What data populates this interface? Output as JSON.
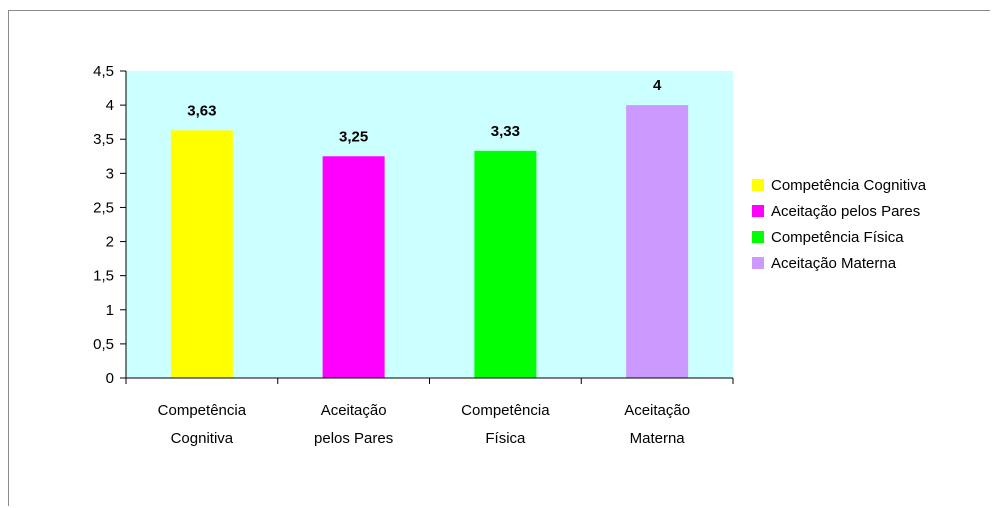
{
  "chart_data": {
    "type": "bar",
    "categories": [
      [
        "Competência",
        "Cognitiva"
      ],
      [
        "Aceitação",
        "pelos Pares"
      ],
      [
        "Competência",
        "Física"
      ],
      [
        "Aceitação",
        "Materna"
      ]
    ],
    "values": [
      3.63,
      3.25,
      3.33,
      4
    ],
    "data_labels": [
      "3,63",
      "3,25",
      "3,33",
      "4"
    ],
    "colors": [
      "#FFFF00",
      "#FF00FF",
      "#00FF00",
      "#CC99FF"
    ],
    "plot_background": "#CCFFFF",
    "ylim": [
      0,
      4.5
    ],
    "yticks": [
      0,
      0.5,
      1,
      1.5,
      2,
      2.5,
      3,
      3.5,
      4,
      4.5
    ],
    "ytick_labels": [
      "0",
      "0,5",
      "1",
      "1,5",
      "2",
      "2,5",
      "3",
      "3,5",
      "4",
      "4,5"
    ],
    "grid": false,
    "legend_position": "right",
    "legend": [
      "Competência Cognitiva",
      "Aceitação pelos Pares",
      "Competência Física",
      "Aceitação Materna"
    ]
  }
}
